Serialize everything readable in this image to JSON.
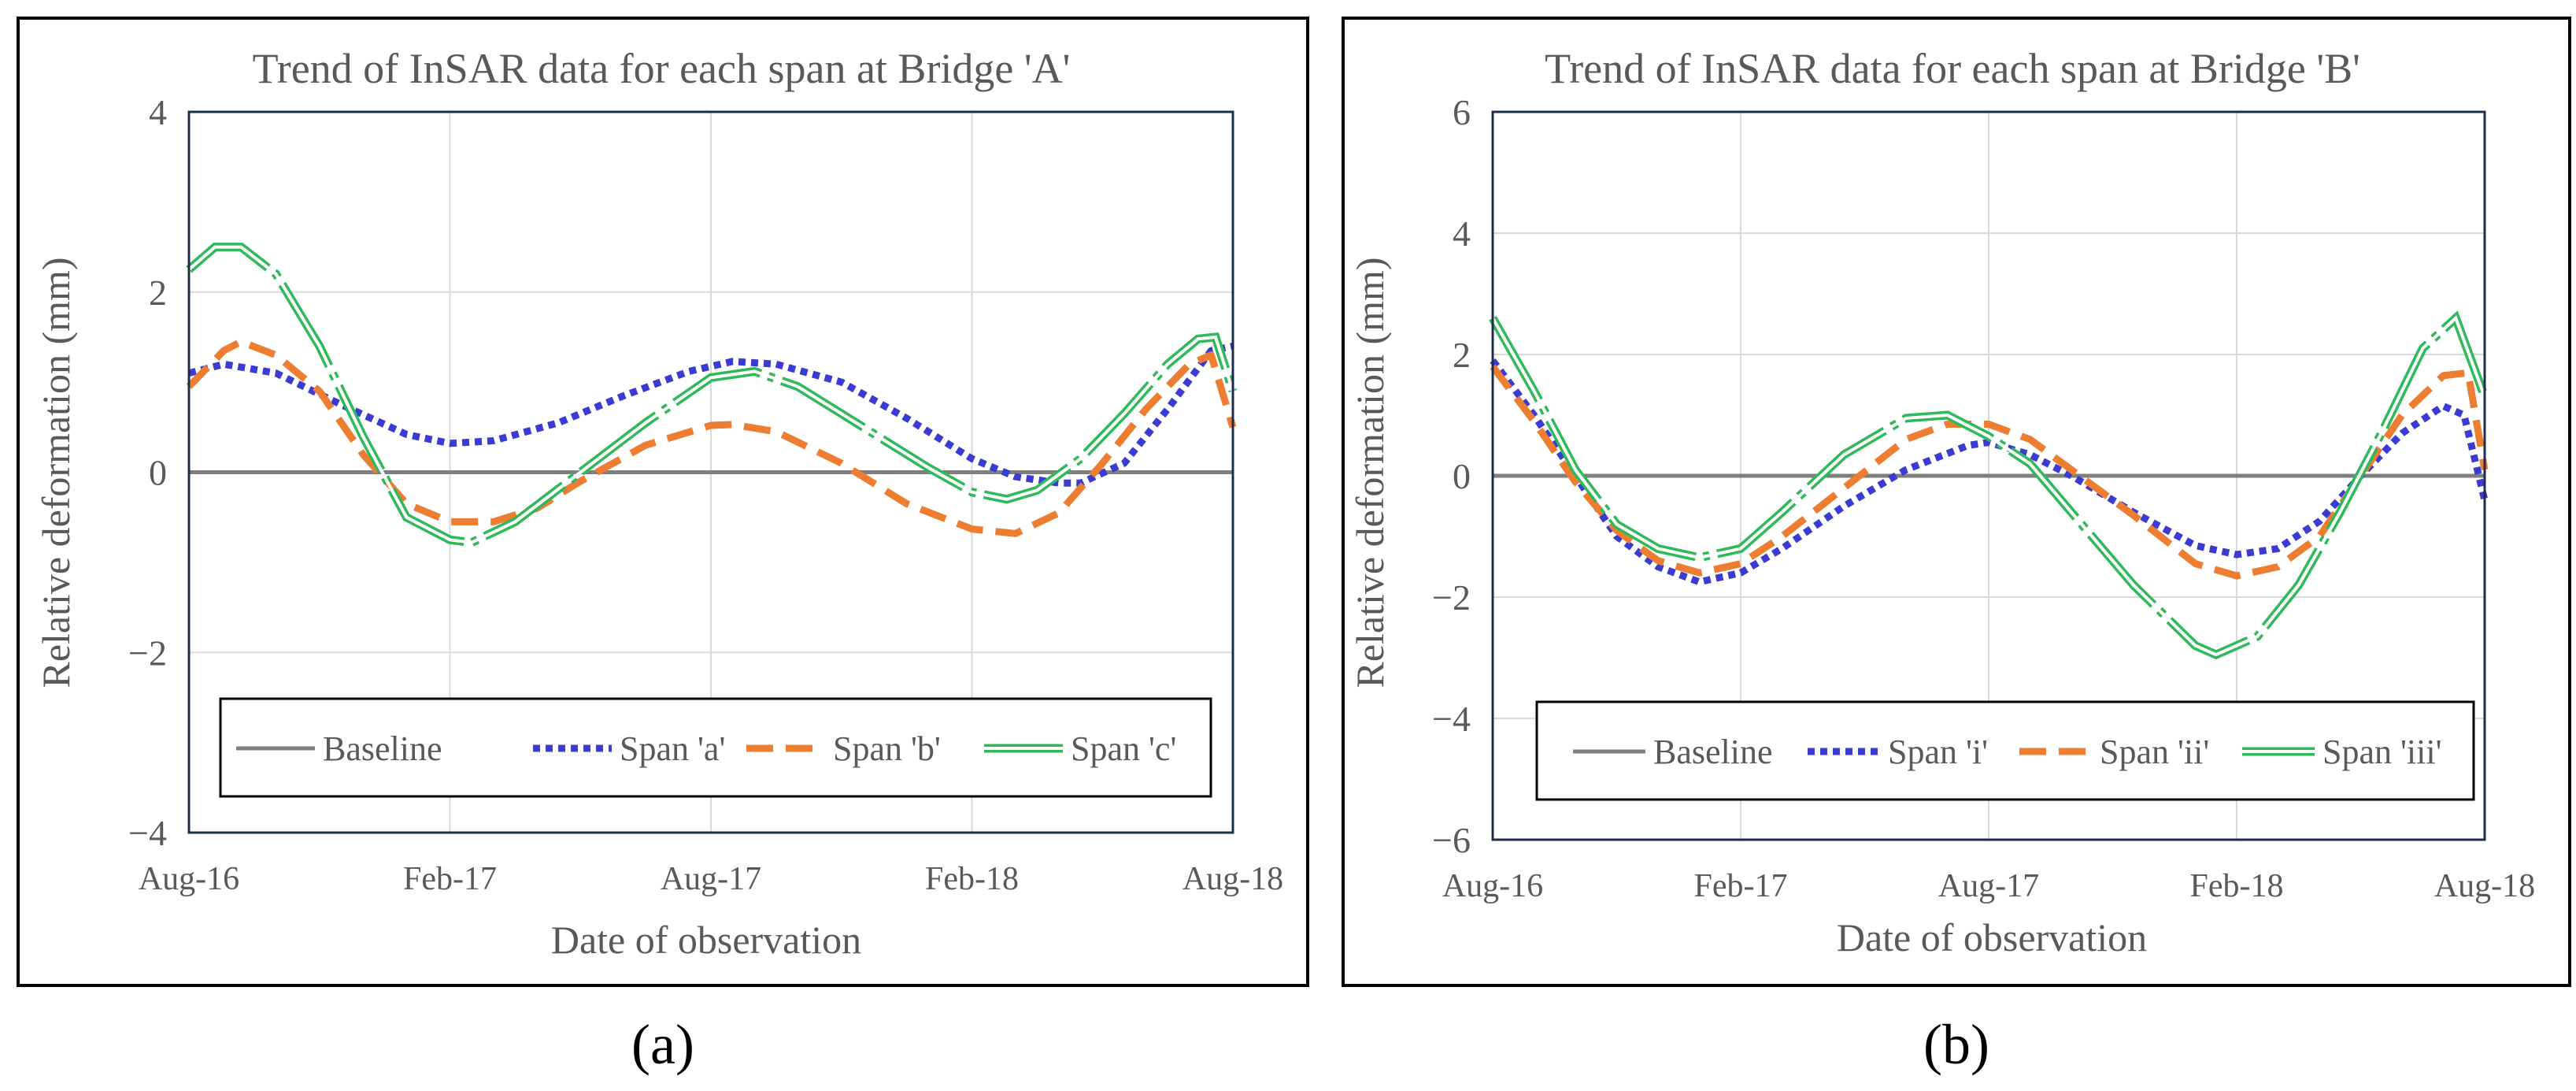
{
  "colors": {
    "baseline": "#7f7f7f",
    "blue": "#3b3bd1",
    "orange": "#ed7d31",
    "green": "#2fb95a",
    "frame": "#1f2d48",
    "grid": "#d9d9d9",
    "text": "#595959"
  },
  "chart_data": [
    {
      "type": "line",
      "panel_label": "(a)",
      "title": "Trend of InSAR data for each span at Bridge 'A'",
      "xlabel": "Date of observation",
      "ylabel": "Relative deformation (mm)",
      "x_tick_labels": [
        "Aug-16",
        "Feb-17",
        "Aug-17",
        "Feb-18",
        "Aug-18"
      ],
      "xlim": [
        0,
        24
      ],
      "ylim": [
        -4,
        4
      ],
      "y_ticks": [
        {
          "value": 4,
          "label": "4"
        },
        {
          "value": 2,
          "label": "2"
        },
        {
          "value": 0,
          "label": "0"
        },
        {
          "value": -2,
          "label": "−2"
        },
        {
          "value": -4,
          "label": "−4"
        }
      ],
      "legend": [
        "Baseline",
        "Span 'a'",
        "Span 'b'",
        "Span 'c'"
      ],
      "series": [
        {
          "name": "Baseline",
          "style": "solid",
          "color": "baseline",
          "points": [
            [
              0,
              0
            ],
            [
              24,
              0
            ]
          ]
        },
        {
          "name": "Span 'a'",
          "style": "dotted",
          "color": "blue",
          "points": [
            [
              0,
              1.1
            ],
            [
              0.8,
              1.2
            ],
            [
              2,
              1.1
            ],
            [
              3.5,
              0.75
            ],
            [
              5,
              0.42
            ],
            [
              6,
              0.32
            ],
            [
              7,
              0.35
            ],
            [
              8.5,
              0.55
            ],
            [
              10,
              0.85
            ],
            [
              11.5,
              1.12
            ],
            [
              12.5,
              1.23
            ],
            [
              13.5,
              1.2
            ],
            [
              15,
              1.0
            ],
            [
              16.5,
              0.6
            ],
            [
              18,
              0.15
            ],
            [
              19,
              -0.05
            ],
            [
              20,
              -0.12
            ],
            [
              20.5,
              -0.12
            ],
            [
              21.5,
              0.1
            ],
            [
              22.5,
              0.7
            ],
            [
              23.5,
              1.35
            ],
            [
              24,
              1.4
            ]
          ]
        },
        {
          "name": "Span 'b'",
          "style": "dashed",
          "color": "orange",
          "points": [
            [
              0,
              0.95
            ],
            [
              0.8,
              1.35
            ],
            [
              1.2,
              1.45
            ],
            [
              2,
              1.3
            ],
            [
              3,
              0.9
            ],
            [
              4,
              0.2
            ],
            [
              5,
              -0.35
            ],
            [
              6,
              -0.55
            ],
            [
              7,
              -0.55
            ],
            [
              8,
              -0.4
            ],
            [
              9,
              -0.1
            ],
            [
              10.5,
              0.3
            ],
            [
              12,
              0.52
            ],
            [
              12.5,
              0.53
            ],
            [
              13.5,
              0.45
            ],
            [
              15,
              0.1
            ],
            [
              16.5,
              -0.35
            ],
            [
              18,
              -0.63
            ],
            [
              19,
              -0.68
            ],
            [
              20,
              -0.45
            ],
            [
              21,
              0.1
            ],
            [
              22,
              0.7
            ],
            [
              23,
              1.2
            ],
            [
              23.5,
              1.3
            ],
            [
              24,
              0.5
            ]
          ]
        },
        {
          "name": "Span 'c'",
          "style": "double",
          "color": "green",
          "points": [
            [
              0,
              2.25
            ],
            [
              0.6,
              2.5
            ],
            [
              1.2,
              2.5
            ],
            [
              2,
              2.2
            ],
            [
              3,
              1.4
            ],
            [
              4,
              0.4
            ],
            [
              5,
              -0.5
            ],
            [
              6,
              -0.75
            ],
            [
              6.5,
              -0.78
            ],
            [
              7.5,
              -0.55
            ],
            [
              9,
              0.0
            ],
            [
              10.5,
              0.55
            ],
            [
              12,
              1.05
            ],
            [
              13,
              1.12
            ],
            [
              14,
              0.95
            ],
            [
              15.5,
              0.5
            ],
            [
              17,
              0.05
            ],
            [
              18,
              -0.22
            ],
            [
              18.8,
              -0.3
            ],
            [
              19.5,
              -0.2
            ],
            [
              20.5,
              0.15
            ],
            [
              21.5,
              0.65
            ],
            [
              22.5,
              1.2
            ],
            [
              23.2,
              1.48
            ],
            [
              23.6,
              1.5
            ],
            [
              24,
              0.9
            ]
          ]
        }
      ]
    },
    {
      "type": "line",
      "panel_label": "(b)",
      "title": "Trend of InSAR data for each span at Bridge 'B'",
      "xlabel": "Date of observation",
      "ylabel": "Relative deformation (mm)",
      "x_tick_labels": [
        "Aug-16",
        "Feb-17",
        "Aug-17",
        "Feb-18",
        "Aug-18"
      ],
      "xlim": [
        0,
        24
      ],
      "ylim": [
        -6,
        6
      ],
      "y_ticks": [
        {
          "value": 6,
          "label": "6"
        },
        {
          "value": 4,
          "label": "4"
        },
        {
          "value": 2,
          "label": "2"
        },
        {
          "value": 0,
          "label": "0"
        },
        {
          "value": -2,
          "label": "−2"
        },
        {
          "value": -4,
          "label": "−4"
        },
        {
          "value": -6,
          "label": "−6"
        }
      ],
      "legend": [
        "Baseline",
        "Span 'i'",
        "Span 'ii'",
        "Span 'iii'"
      ],
      "series": [
        {
          "name": "Baseline",
          "style": "solid",
          "color": "baseline",
          "points": [
            [
              0,
              0
            ],
            [
              24,
              0
            ]
          ]
        },
        {
          "name": "Span 'i'",
          "style": "dotted",
          "color": "blue",
          "points": [
            [
              0,
              1.9
            ],
            [
              1,
              1.0
            ],
            [
              2,
              0.0
            ],
            [
              3,
              -1.0
            ],
            [
              4,
              -1.5
            ],
            [
              5,
              -1.75
            ],
            [
              6,
              -1.6
            ],
            [
              7,
              -1.2
            ],
            [
              8.5,
              -0.5
            ],
            [
              10,
              0.1
            ],
            [
              11.5,
              0.5
            ],
            [
              12,
              0.55
            ],
            [
              13,
              0.35
            ],
            [
              14,
              0.0
            ],
            [
              15.5,
              -0.6
            ],
            [
              17,
              -1.15
            ],
            [
              18,
              -1.3
            ],
            [
              19,
              -1.2
            ],
            [
              20,
              -0.75
            ],
            [
              21,
              0.0
            ],
            [
              22,
              0.7
            ],
            [
              23,
              1.15
            ],
            [
              23.5,
              1.0
            ],
            [
              24,
              -0.4
            ]
          ]
        },
        {
          "name": "Span 'ii'",
          "style": "dashed",
          "color": "orange",
          "points": [
            [
              0,
              1.8
            ],
            [
              1,
              0.9
            ],
            [
              2,
              -0.1
            ],
            [
              3,
              -0.9
            ],
            [
              4,
              -1.4
            ],
            [
              5,
              -1.6
            ],
            [
              6,
              -1.45
            ],
            [
              7,
              -1.0
            ],
            [
              8.5,
              -0.2
            ],
            [
              10,
              0.6
            ],
            [
              11,
              0.85
            ],
            [
              12,
              0.85
            ],
            [
              13,
              0.6
            ],
            [
              14,
              0.1
            ],
            [
              15.5,
              -0.65
            ],
            [
              17,
              -1.45
            ],
            [
              18,
              -1.65
            ],
            [
              19,
              -1.5
            ],
            [
              20,
              -1.0
            ],
            [
              21,
              0.0
            ],
            [
              22,
              1.0
            ],
            [
              23,
              1.65
            ],
            [
              23.6,
              1.7
            ],
            [
              24,
              0.1
            ]
          ]
        },
        {
          "name": "Span 'iii'",
          "style": "double",
          "color": "green",
          "points": [
            [
              0,
              2.6
            ],
            [
              1,
              1.4
            ],
            [
              2,
              0.1
            ],
            [
              3,
              -0.8
            ],
            [
              4,
              -1.2
            ],
            [
              5,
              -1.35
            ],
            [
              6,
              -1.2
            ],
            [
              7,
              -0.6
            ],
            [
              8.5,
              0.35
            ],
            [
              10,
              0.95
            ],
            [
              11,
              1.0
            ],
            [
              12,
              0.65
            ],
            [
              13,
              0.2
            ],
            [
              14,
              -0.6
            ],
            [
              15.5,
              -1.8
            ],
            [
              17,
              -2.8
            ],
            [
              17.5,
              -2.95
            ],
            [
              18.5,
              -2.65
            ],
            [
              19.5,
              -1.8
            ],
            [
              20.5,
              -0.6
            ],
            [
              21.5,
              0.7
            ],
            [
              22.5,
              2.1
            ],
            [
              23.3,
              2.6
            ],
            [
              24,
              1.3
            ]
          ]
        }
      ]
    }
  ]
}
